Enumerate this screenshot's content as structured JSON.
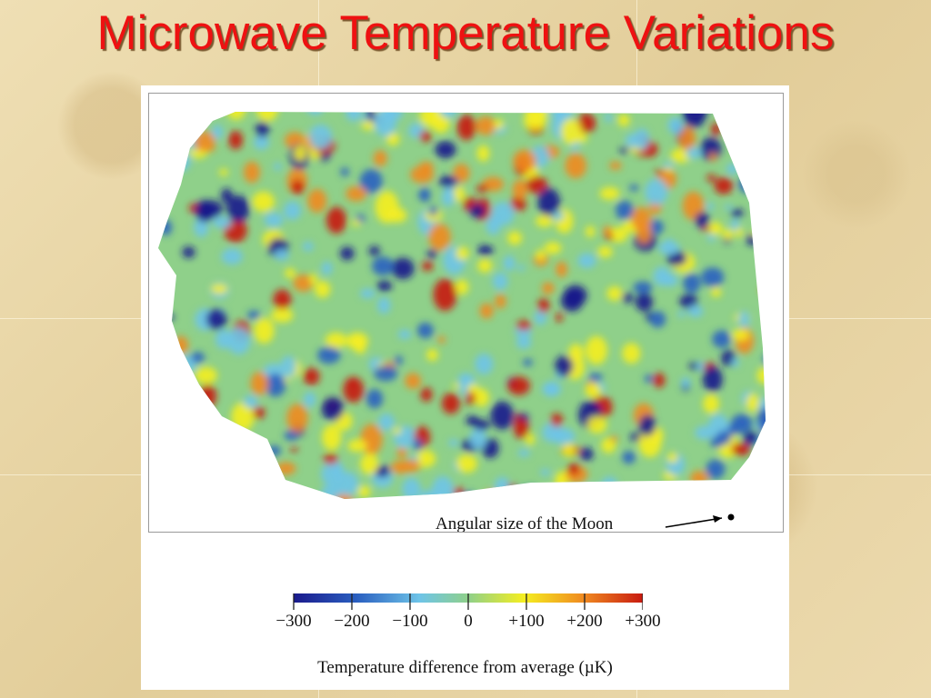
{
  "slide": {
    "title": "Microwave Temperature Variations"
  },
  "figure": {
    "moon_annotation": "Angular size of the Moon",
    "colorbar": {
      "ticks": [
        "−300",
        "−200",
        "−100",
        "0",
        "+100",
        "+200",
        "+300"
      ],
      "title": "Temperature difference from average (µK)",
      "colors": [
        "#1a1a8c",
        "#2a5fc0",
        "#6ec4e8",
        "#8fd08a",
        "#f5ee20",
        "#f08a20",
        "#c81a10"
      ]
    }
  },
  "colors": {
    "title": "#ee1111",
    "background": "#e8d6a6"
  }
}
